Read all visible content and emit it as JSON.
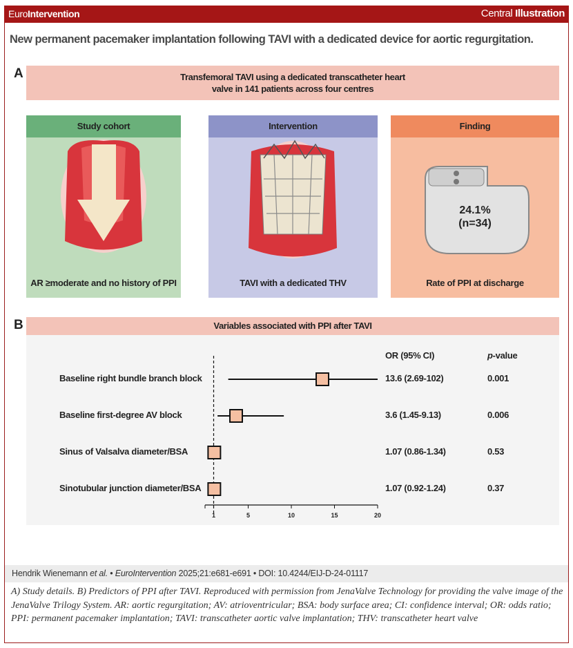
{
  "header": {
    "brand_light": "Euro",
    "brand_bold": "Intervention",
    "right_light": "Central ",
    "right_bold": "Illustration"
  },
  "title": "New permanent pacemaker implantation following TAVI with a dedicated device for aortic regurgitation.",
  "section_a": {
    "label": "A",
    "banner_line1": "Transfemoral TAVI using a dedicated transcatheter heart",
    "banner_line2": "valve in 141 patients across four centres",
    "panels": [
      {
        "header": "Study cohort",
        "footer": "AR ≥moderate and no history of PPI",
        "color": "#6ab07a",
        "bg": "#bfdcbc"
      },
      {
        "header": "Intervention",
        "footer": "TAVI with a dedicated THV",
        "color": "#8d93c8",
        "bg": "#c7c9e6"
      },
      {
        "header": "Finding",
        "footer": "Rate of PPI at discharge",
        "color": "#ef8a5e",
        "bg": "#f7bda0",
        "value": "24.1%",
        "count": "(n=34)"
      }
    ]
  },
  "section_b": {
    "label": "B",
    "banner": "Variables associated with PPI after TAVI"
  },
  "chart_data": {
    "type": "forest",
    "title": "Variables associated with PPI after TAVI",
    "columns": {
      "or": "OR (95% CI)",
      "p_prefix": "p",
      "p_suffix": "-value"
    },
    "reference_line": 1,
    "xlim": [
      0,
      20
    ],
    "xticks": [
      1,
      5,
      10,
      15,
      20
    ],
    "rows": [
      {
        "label": "Baseline right bundle branch block",
        "or": 13.6,
        "lo": 2.69,
        "hi": 102,
        "or_text": "13.6 (2.69-102)",
        "p": "0.001"
      },
      {
        "label": "Baseline first-degree AV block",
        "or": 3.6,
        "lo": 1.45,
        "hi": 9.13,
        "or_text": "3.6 (1.45-9.13)",
        "p": "0.006"
      },
      {
        "label": "Sinus of Valsalva diameter/BSA",
        "or": 1.07,
        "lo": 0.86,
        "hi": 1.34,
        "or_text": "1.07 (0.86-1.34)",
        "p": "0.53"
      },
      {
        "label": "Sinotubular junction diameter/BSA",
        "or": 1.07,
        "lo": 0.92,
        "hi": 1.24,
        "or_text": "1.07 (0.92-1.24)",
        "p": "0.37"
      }
    ],
    "marker_color": "#f5bfa2"
  },
  "footer": {
    "authors": "Hendrik Wienemann ",
    "etal": "et al.",
    "sep1": " • ",
    "journal": "EuroIntervention",
    "citation": " 2025;21:e681-e691 • DOI: 10.4244/EIJ-D-24-01117"
  },
  "caption": "A) Study details. B) Predictors of PPI after TAVI. Reproduced with permission from JenaValve Technology for providing the valve image of the JenaValve Trilogy System. AR: aortic regurgitation; AV: atrioventricular; BSA: body surface area; CI: confidence interval; OR: odds ratio; PPI: permanent pacemaker implantation; TAVI: transcatheter aortic valve implantation; THV: transcatheter heart valve"
}
